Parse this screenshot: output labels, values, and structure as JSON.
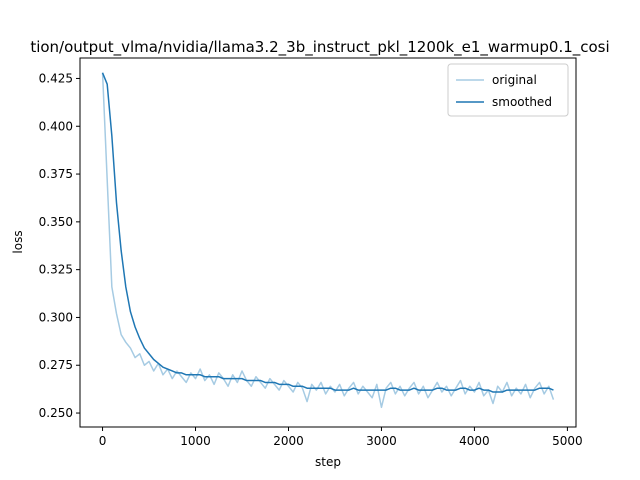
{
  "chart_data": {
    "type": "line",
    "title": "tion/output_vlma/nvidia/llama3.2_3b_instruct_pkl_1200k_e1_warmup0.1_cosi",
    "x_label": "step",
    "y_label": "loss",
    "x": [
      0,
      50,
      100,
      150,
      200,
      250,
      300,
      350,
      400,
      450,
      500,
      550,
      600,
      650,
      700,
      750,
      800,
      850,
      900,
      950,
      1000,
      1050,
      1100,
      1150,
      1200,
      1250,
      1300,
      1350,
      1400,
      1450,
      1500,
      1550,
      1600,
      1650,
      1700,
      1750,
      1800,
      1850,
      1900,
      1950,
      2000,
      2050,
      2100,
      2150,
      2200,
      2250,
      2300,
      2350,
      2400,
      2450,
      2500,
      2550,
      2600,
      2650,
      2700,
      2750,
      2800,
      2850,
      2900,
      2950,
      3000,
      3050,
      3100,
      3150,
      3200,
      3250,
      3300,
      3350,
      3400,
      3450,
      3500,
      3550,
      3600,
      3650,
      3700,
      3750,
      3800,
      3850,
      3900,
      3950,
      4000,
      4050,
      4100,
      4150,
      4200,
      4250,
      4300,
      4350,
      4400,
      4450,
      4500,
      4550,
      4600,
      4650,
      4700,
      4750,
      4800,
      4850
    ],
    "series": [
      {
        "name": "original",
        "color": "#a6cbe3",
        "values": [
          0.428,
          0.372,
          0.316,
          0.302,
          0.291,
          0.287,
          0.284,
          0.279,
          0.281,
          0.275,
          0.277,
          0.272,
          0.276,
          0.27,
          0.273,
          0.268,
          0.272,
          0.269,
          0.266,
          0.271,
          0.268,
          0.273,
          0.267,
          0.27,
          0.265,
          0.271,
          0.268,
          0.264,
          0.27,
          0.266,
          0.272,
          0.267,
          0.264,
          0.269,
          0.266,
          0.263,
          0.268,
          0.265,
          0.262,
          0.267,
          0.264,
          0.261,
          0.266,
          0.263,
          0.256,
          0.265,
          0.262,
          0.266,
          0.26,
          0.264,
          0.261,
          0.265,
          0.259,
          0.263,
          0.266,
          0.26,
          0.264,
          0.261,
          0.258,
          0.265,
          0.253,
          0.263,
          0.266,
          0.26,
          0.264,
          0.259,
          0.263,
          0.266,
          0.26,
          0.264,
          0.258,
          0.262,
          0.266,
          0.261,
          0.264,
          0.259,
          0.263,
          0.267,
          0.26,
          0.264,
          0.261,
          0.266,
          0.259,
          0.262,
          0.255,
          0.264,
          0.261,
          0.266,
          0.259,
          0.263,
          0.26,
          0.265,
          0.258,
          0.263,
          0.266,
          0.26,
          0.264,
          0.257
        ]
      },
      {
        "name": "smoothed",
        "color": "#1f77b4",
        "values": [
          0.428,
          0.422,
          0.395,
          0.36,
          0.335,
          0.316,
          0.303,
          0.295,
          0.289,
          0.284,
          0.281,
          0.278,
          0.276,
          0.274,
          0.273,
          0.272,
          0.271,
          0.271,
          0.27,
          0.27,
          0.27,
          0.27,
          0.269,
          0.269,
          0.269,
          0.269,
          0.268,
          0.268,
          0.268,
          0.268,
          0.268,
          0.267,
          0.267,
          0.267,
          0.267,
          0.266,
          0.266,
          0.266,
          0.265,
          0.265,
          0.265,
          0.264,
          0.264,
          0.264,
          0.263,
          0.263,
          0.263,
          0.263,
          0.263,
          0.263,
          0.262,
          0.262,
          0.262,
          0.262,
          0.263,
          0.262,
          0.262,
          0.262,
          0.262,
          0.262,
          0.262,
          0.262,
          0.263,
          0.263,
          0.262,
          0.262,
          0.262,
          0.263,
          0.262,
          0.262,
          0.262,
          0.262,
          0.263,
          0.263,
          0.262,
          0.262,
          0.262,
          0.263,
          0.263,
          0.262,
          0.262,
          0.263,
          0.262,
          0.262,
          0.261,
          0.261,
          0.261,
          0.262,
          0.262,
          0.262,
          0.262,
          0.262,
          0.262,
          0.262,
          0.263,
          0.263,
          0.263,
          0.262
        ]
      }
    ],
    "xlim": [
      -242.5,
      5092.5
    ],
    "xticks": [
      0,
      1000,
      2000,
      3000,
      4000,
      5000
    ],
    "ylim": [
      0.2427,
      0.4357
    ],
    "yticks": [
      {
        "value": 0.25,
        "label": "0.250"
      },
      0.275,
      {
        "value": 0.3,
        "label": "0.300"
      },
      0.325,
      {
        "value": 0.35,
        "label": "0.350"
      },
      0.375,
      {
        "value": 0.4,
        "label": "0.400"
      },
      0.425
    ],
    "legend": "upper right",
    "grid": false
  }
}
